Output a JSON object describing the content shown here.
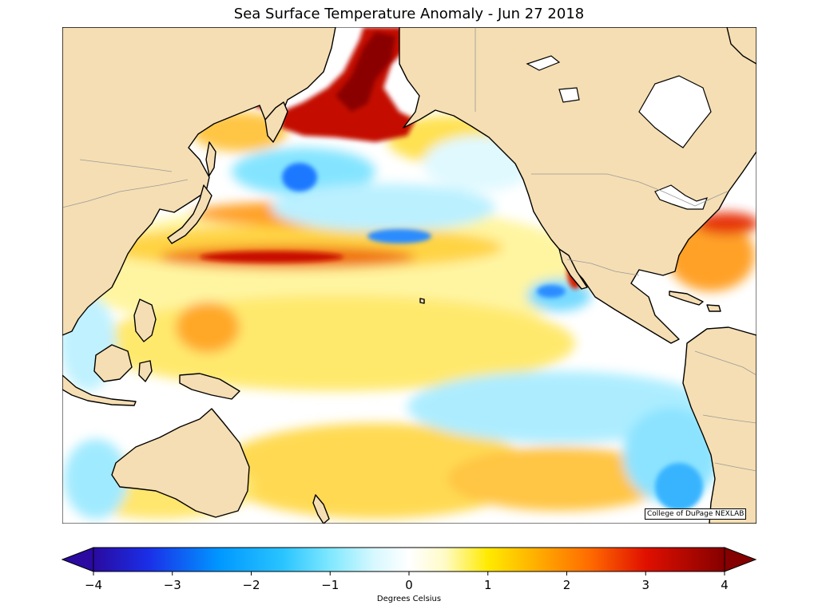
{
  "map": {
    "title": "Sea Surface Temperature Anomaly - Jun 27 2018",
    "credit": "College of DuPage NEXLAB",
    "colors": {
      "land": "#f5deb3",
      "coastline": "#000000",
      "border": "#9a9a9a",
      "frame": "#000000"
    }
  },
  "colorbar": {
    "label": "Degrees Celsius",
    "min": -4,
    "max": 4,
    "extend": "both",
    "ticks": [
      {
        "value": -4,
        "label": "−4"
      },
      {
        "value": -3,
        "label": "−3"
      },
      {
        "value": -2,
        "label": "−2"
      },
      {
        "value": -1,
        "label": "−1"
      },
      {
        "value": 0,
        "label": "0"
      },
      {
        "value": 1,
        "label": "1"
      },
      {
        "value": 2,
        "label": "2"
      },
      {
        "value": 3,
        "label": "3"
      },
      {
        "value": 4,
        "label": "4"
      }
    ],
    "stops": [
      {
        "value": -4,
        "color": "#2a0aa0"
      },
      {
        "value": -3.3,
        "color": "#1a2fe8"
      },
      {
        "value": -2.4,
        "color": "#0098ff"
      },
      {
        "value": -1.6,
        "color": "#29c4ff"
      },
      {
        "value": -1,
        "color": "#7fe8ff"
      },
      {
        "value": -0.45,
        "color": "#d6f8ff"
      },
      {
        "value": 0,
        "color": "#ffffff"
      },
      {
        "value": 0.45,
        "color": "#fffbc7"
      },
      {
        "value": 1,
        "color": "#ffea00"
      },
      {
        "value": 1.6,
        "color": "#ffb000"
      },
      {
        "value": 2.3,
        "color": "#ff6a00"
      },
      {
        "value": 3,
        "color": "#e01000"
      },
      {
        "value": 4,
        "color": "#850000"
      }
    ],
    "under_color": "#2a0aa0",
    "over_color": "#850000"
  }
}
